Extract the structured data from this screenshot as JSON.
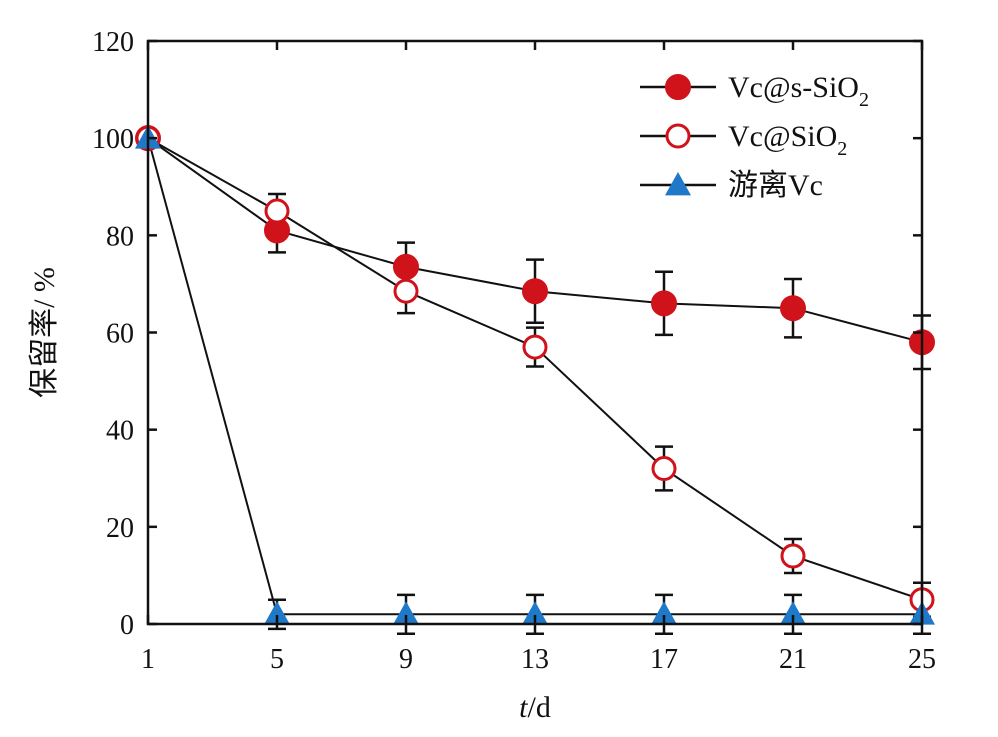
{
  "chart_data": {
    "type": "line",
    "title": "",
    "xlabel": {
      "var": "t",
      "unit": "/d"
    },
    "ylabel": "保留率/ %",
    "xlim": [
      1,
      25
    ],
    "ylim": [
      0,
      120
    ],
    "xticks": [
      1,
      5,
      9,
      13,
      17,
      21,
      25
    ],
    "yticks": [
      0,
      20,
      40,
      60,
      80,
      100,
      120
    ],
    "grid": false,
    "legend_position": "top-right",
    "x": [
      1,
      5,
      9,
      13,
      17,
      21,
      25
    ],
    "series": [
      {
        "name": "Vc@s-SiO2",
        "label_main": "Vc@s-SiO",
        "label_sub": "2",
        "marker": "circle-filled",
        "color": "#d0121b",
        "values": [
          100,
          81,
          73.5,
          68.5,
          66,
          65,
          58
        ],
        "errors": [
          0,
          4.5,
          5,
          6.5,
          6.5,
          6,
          5.5
        ]
      },
      {
        "name": "Vc@SiO2",
        "label_main": "Vc@SiO",
        "label_sub": "2",
        "marker": "circle-open",
        "color": "#d0121b",
        "values": [
          100,
          85,
          68.5,
          57,
          32,
          14,
          5
        ],
        "errors": [
          0,
          3.5,
          4.5,
          4,
          4.5,
          3.5,
          3.5
        ]
      },
      {
        "name": "游离Vc",
        "label_main": "游离Vc",
        "label_sub": "",
        "marker": "triangle-filled",
        "color": "#1f78c8",
        "values": [
          100,
          2,
          2,
          2,
          2,
          2,
          2
        ],
        "errors": [
          0,
          3,
          4,
          4,
          4,
          4,
          4
        ]
      }
    ]
  }
}
